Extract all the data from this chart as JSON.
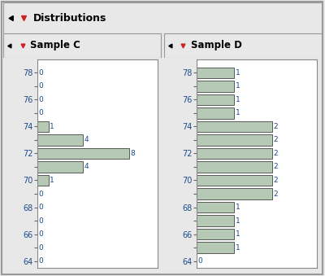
{
  "sample_c": {
    "values": [
      64,
      65,
      66,
      67,
      68,
      69,
      70,
      71,
      72,
      73,
      74,
      75,
      76,
      77,
      78
    ],
    "counts": [
      0,
      0,
      0,
      0,
      0,
      0,
      1,
      4,
      8,
      4,
      1,
      0,
      0,
      0,
      0
    ]
  },
  "sample_d": {
    "values": [
      64,
      65,
      66,
      67,
      68,
      69,
      70,
      71,
      72,
      73,
      74,
      75,
      76,
      77,
      78
    ],
    "counts": [
      0,
      1,
      1,
      1,
      1,
      2,
      2,
      2,
      2,
      2,
      2,
      1,
      1,
      1,
      1
    ]
  },
  "bar_color": "#b5c9b5",
  "bar_edge_color": "#444444",
  "bg_color": "#e8e8e8",
  "panel_bg": "#ffffff",
  "title": "Distributions",
  "label_c": "Sample C",
  "label_d": "Sample D",
  "title_color": "#000000",
  "count_color": "#1a4a8a",
  "ytick_color": "#1a4a8a",
  "title_fontsize": 9,
  "label_fontsize": 8.5,
  "tick_fontsize": 7,
  "count_fontsize": 6.5
}
